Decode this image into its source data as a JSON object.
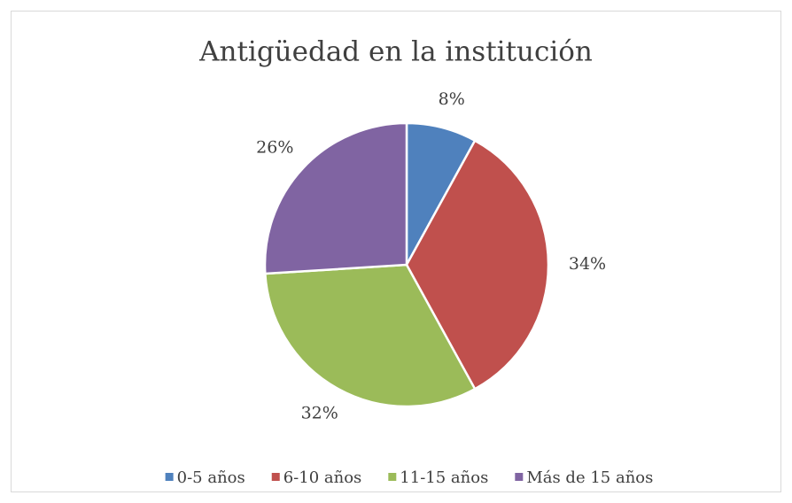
{
  "chart_data": {
    "type": "pie",
    "title": "Antigüedad en la institución",
    "categories": [
      "0-5 años",
      "6-10 años",
      "11-15 años",
      "Más de 15 años"
    ],
    "values": [
      8,
      34,
      32,
      26
    ],
    "value_labels": [
      "8%",
      "34%",
      "32%",
      "26%"
    ],
    "colors": [
      "#4f81bd",
      "#c0504d",
      "#9bbb59",
      "#8064a2"
    ],
    "legend": "bottom"
  }
}
